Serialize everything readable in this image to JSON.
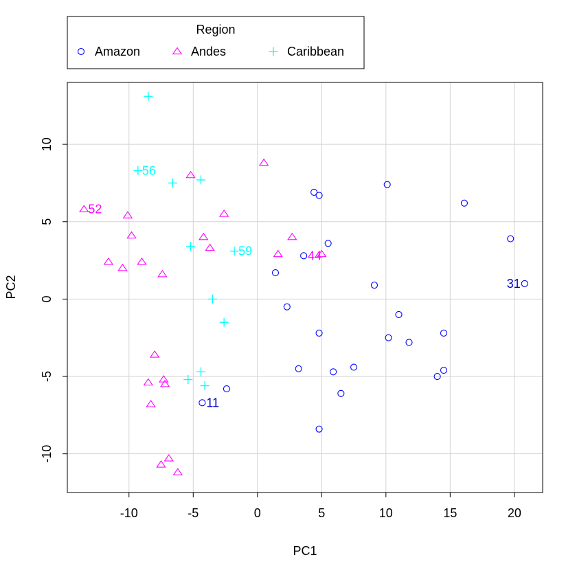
{
  "chart_data": {
    "type": "scatter",
    "xlabel": "PC1",
    "ylabel": "PC2",
    "xlim": [
      -14.8,
      22.2
    ],
    "ylim": [
      -12.5,
      14.0
    ],
    "xticks": [
      -10,
      -5,
      0,
      5,
      10,
      15,
      20
    ],
    "yticks": [
      -10,
      -5,
      0,
      5,
      10
    ],
    "grid": true,
    "legend": {
      "title": "Region",
      "placement": "top",
      "orientation": "horizontal"
    },
    "series": [
      {
        "name": "Amazon",
        "marker": "circle",
        "color": "#0000ff",
        "points": [
          {
            "x": 4.4,
            "y": 6.9
          },
          {
            "x": 4.8,
            "y": 6.7
          },
          {
            "x": 10.1,
            "y": 7.4
          },
          {
            "x": 16.1,
            "y": 6.2
          },
          {
            "x": 19.7,
            "y": 3.9
          },
          {
            "x": 20.8,
            "y": 1.0
          },
          {
            "x": 5.5,
            "y": 3.6
          },
          {
            "x": 3.6,
            "y": 2.8
          },
          {
            "x": 1.4,
            "y": 1.7
          },
          {
            "x": 9.1,
            "y": 0.9
          },
          {
            "x": 2.3,
            "y": -0.5
          },
          {
            "x": 11.0,
            "y": -1.0
          },
          {
            "x": 4.8,
            "y": -2.2
          },
          {
            "x": 10.2,
            "y": -2.5
          },
          {
            "x": 11.8,
            "y": -2.8
          },
          {
            "x": 14.5,
            "y": -2.2
          },
          {
            "x": 3.2,
            "y": -4.5
          },
          {
            "x": 5.9,
            "y": -4.7
          },
          {
            "x": 7.5,
            "y": -4.4
          },
          {
            "x": 14.0,
            "y": -5.0
          },
          {
            "x": 14.5,
            "y": -4.6
          },
          {
            "x": 6.5,
            "y": -6.1
          },
          {
            "x": -2.4,
            "y": -5.8
          },
          {
            "x": -4.3,
            "y": -6.7
          },
          {
            "x": 4.8,
            "y": -8.4
          }
        ]
      },
      {
        "name": "Andes",
        "marker": "triangle",
        "color": "#ff00ff",
        "points": [
          {
            "x": 0.5,
            "y": 8.8
          },
          {
            "x": -5.2,
            "y": 8.0
          },
          {
            "x": -13.5,
            "y": 5.8
          },
          {
            "x": -10.1,
            "y": 5.4
          },
          {
            "x": -2.6,
            "y": 5.5
          },
          {
            "x": -9.8,
            "y": 4.1
          },
          {
            "x": -4.2,
            "y": 4.0
          },
          {
            "x": -3.7,
            "y": 3.3
          },
          {
            "x": 2.7,
            "y": 4.0
          },
          {
            "x": 1.6,
            "y": 2.9
          },
          {
            "x": 5.0,
            "y": 2.9
          },
          {
            "x": -11.6,
            "y": 2.4
          },
          {
            "x": -10.5,
            "y": 2.0
          },
          {
            "x": -9.0,
            "y": 2.4
          },
          {
            "x": -7.4,
            "y": 1.6
          },
          {
            "x": -8.0,
            "y": -3.6
          },
          {
            "x": -8.5,
            "y": -5.4
          },
          {
            "x": -7.3,
            "y": -5.2
          },
          {
            "x": -7.2,
            "y": -5.5
          },
          {
            "x": -8.3,
            "y": -6.8
          },
          {
            "x": -6.9,
            "y": -10.3
          },
          {
            "x": -7.5,
            "y": -10.7
          },
          {
            "x": -6.2,
            "y": -11.2
          }
        ]
      },
      {
        "name": "Caribbean",
        "marker": "plus",
        "color": "#00ffff",
        "points": [
          {
            "x": -8.5,
            "y": 13.1
          },
          {
            "x": -9.3,
            "y": 8.3
          },
          {
            "x": -6.6,
            "y": 7.5
          },
          {
            "x": -4.4,
            "y": 7.7
          },
          {
            "x": -5.2,
            "y": 3.4
          },
          {
            "x": -1.8,
            "y": 3.1
          },
          {
            "x": -3.5,
            "y": 0.0
          },
          {
            "x": -2.6,
            "y": -1.5
          },
          {
            "x": -5.4,
            "y": -5.2
          },
          {
            "x": -4.4,
            "y": -4.7
          },
          {
            "x": -4.1,
            "y": -5.6
          }
        ]
      }
    ],
    "annotations": [
      {
        "text": "56",
        "x": -9.3,
        "y": 8.3,
        "color": "#00ffff",
        "side": "right"
      },
      {
        "text": "52",
        "x": -13.5,
        "y": 5.8,
        "color": "#ff00ff",
        "side": "right"
      },
      {
        "text": "59",
        "x": -1.8,
        "y": 3.1,
        "color": "#00ffff",
        "side": "right"
      },
      {
        "text": "44",
        "x": 3.6,
        "y": 2.8,
        "color": "#ff00ff",
        "side": "right"
      },
      {
        "text": "31",
        "x": 20.8,
        "y": 1.0,
        "color": "#0000cc",
        "side": "left"
      },
      {
        "text": "11",
        "x": -4.3,
        "y": -6.7,
        "color": "#0000cc",
        "side": "right"
      }
    ]
  }
}
